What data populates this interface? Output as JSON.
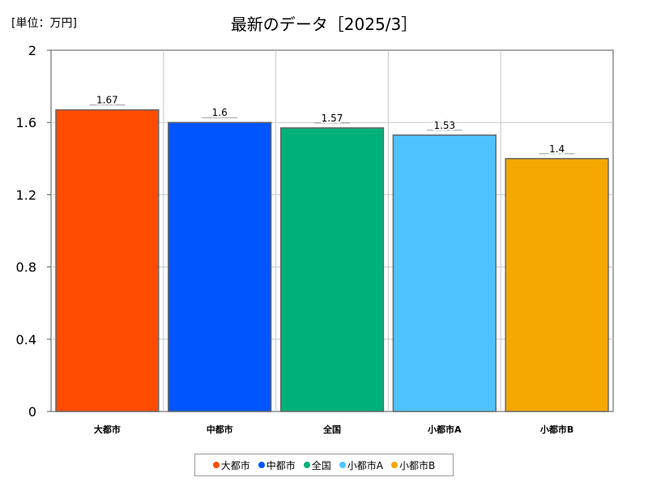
{
  "unit_label": "[単位：万円]",
  "title": "最新のデータ［2025/3］",
  "chart_data": {
    "type": "bar",
    "title": "最新のデータ［2025/3］",
    "ylabel": "[単位：万円]",
    "categories": [
      "大都市",
      "中都市",
      "全国",
      "小都市A",
      "小都市B"
    ],
    "values": [
      1.67,
      1.6,
      1.57,
      1.53,
      1.4
    ],
    "data_labels": [
      "1.67",
      "1.6",
      "1.57",
      "1.53",
      "1.4"
    ],
    "colors": [
      "#ff4c00",
      "#0055ff",
      "#00b07b",
      "#4fc3ff",
      "#f4a800"
    ],
    "ylim": [
      0,
      2
    ],
    "yticks": [
      0,
      0.4,
      0.8,
      1.2,
      1.6,
      2
    ],
    "ytick_labels": [
      "0",
      "0.4",
      "0.8",
      "1.2",
      "1.6",
      "2"
    ],
    "grid": true,
    "legend_position": "bottom"
  }
}
